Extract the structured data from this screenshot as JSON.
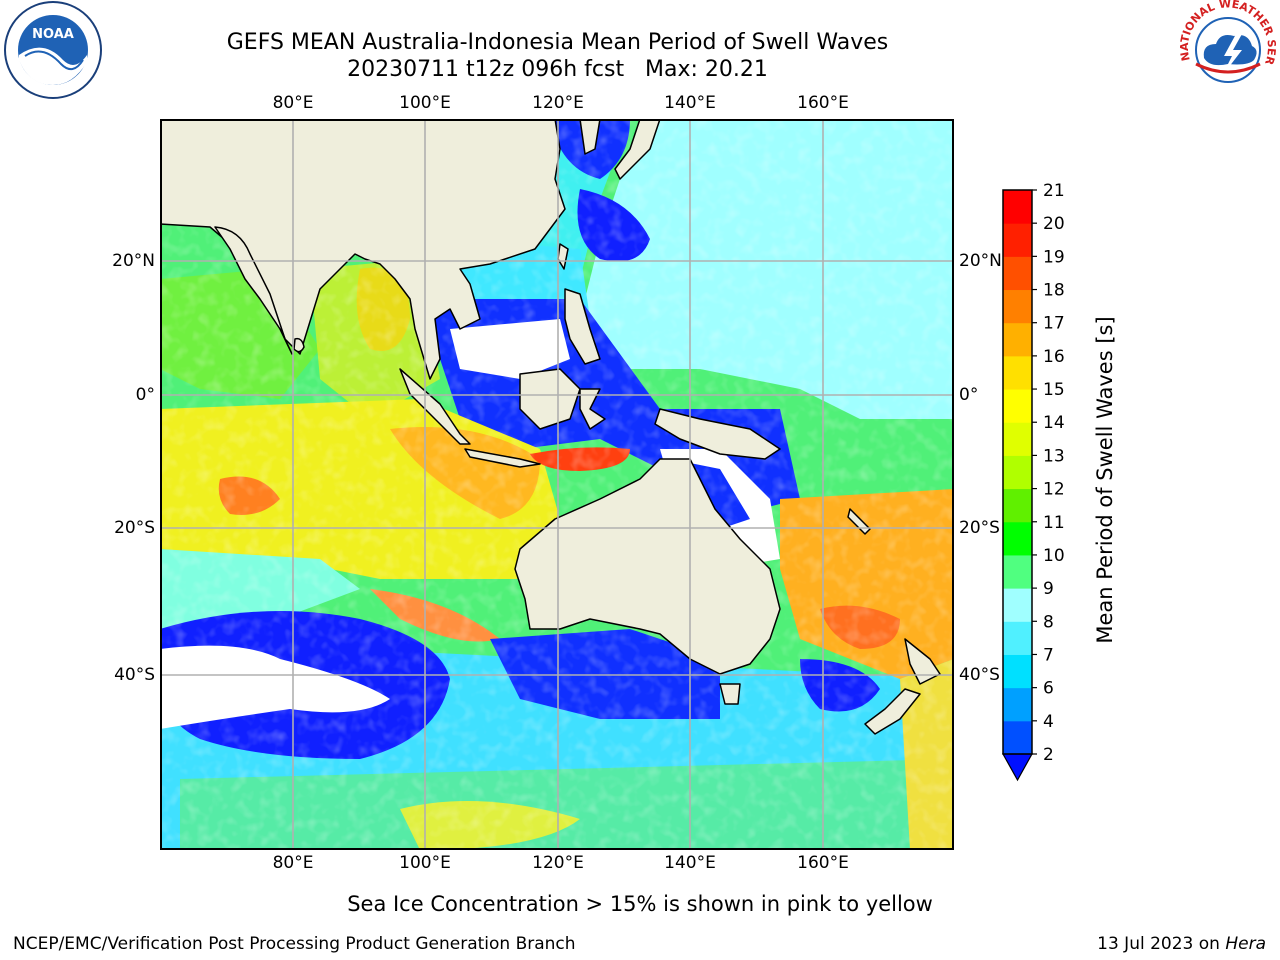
{
  "header": {
    "title_line1": "GEFS MEAN Australia-Indonesia Mean Period of Swell Waves",
    "title_line2": "20230711 t12z 096h fcst   Max: 20.21"
  },
  "map": {
    "lon_ticks": [
      "80°E",
      "100°E",
      "120°E",
      "140°E",
      "160°E"
    ],
    "lat_ticks": [
      "20°N",
      "0°",
      "20°S",
      "40°S"
    ],
    "colors": {
      "land": "#efeedc",
      "graticule": "#b0b0b0"
    }
  },
  "colorbar": {
    "label": "Mean Period of Swell Waves [s]",
    "tick_labels": [
      "2",
      "4",
      "6",
      "7",
      "8",
      "9",
      "10",
      "11",
      "12",
      "13",
      "14",
      "15",
      "16",
      "17",
      "18",
      "19",
      "20",
      "21"
    ],
    "colors": [
      "#0050ff",
      "#00a0ff",
      "#00e0ff",
      "#50f0ff",
      "#a0ffff",
      "#50ff80",
      "#00ff00",
      "#60f000",
      "#b0ff00",
      "#e0ff00",
      "#ffff00",
      "#ffe000",
      "#ffb000",
      "#ff8000",
      "#ff5000",
      "#ff2000",
      "#ff0000"
    ],
    "extend_color": "#0010ff"
  },
  "note": "Sea Ice Concentration > 15% is shown in pink to yellow",
  "footer": {
    "left": "NCEP/EMC/Verification Post Processing Product Generation Branch",
    "date": "13 Jul 2023 on",
    "machine": "Hera"
  },
  "logos": {
    "noaa_text": "NOAA",
    "nws_text": "NATIONAL WEATHER SERVICE"
  }
}
